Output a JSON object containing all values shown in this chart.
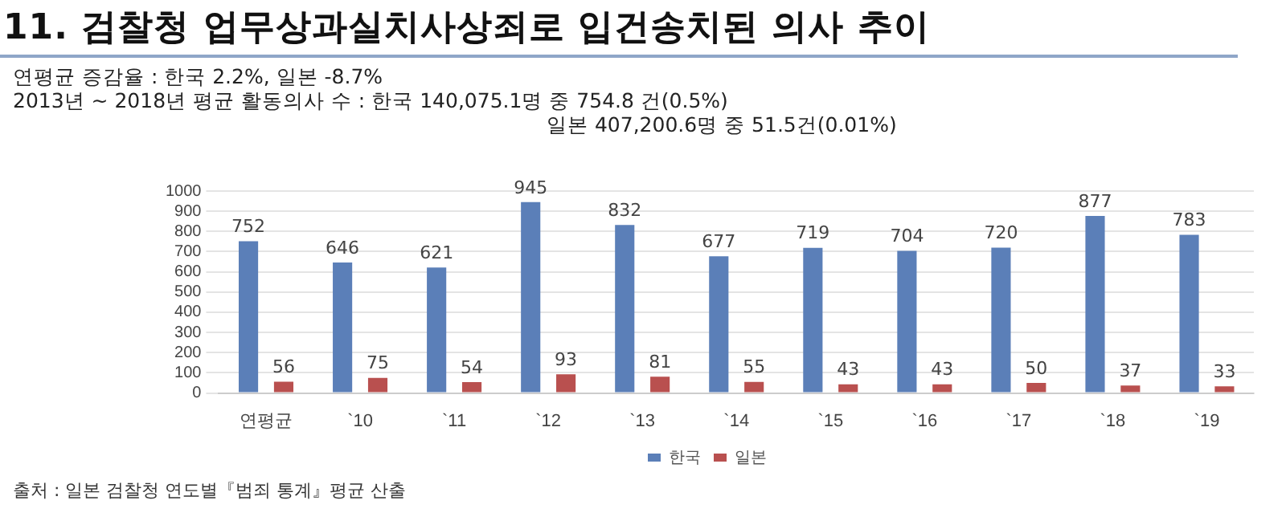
{
  "chart_data": {
    "type": "bar",
    "title": "11. 검찰청 업무상과실치사상죄로 입건송치된 의사 추이",
    "subtitle": "연평균 증감율 : 한국 2.2%, 일본 -8.7%\n2013년 ~ 2018년 평균 활동의사 수 : 한국 140,075.1명 중 754.8 건(0.5%)\n일본 407,200.6명 중 51.5건(0.01%)",
    "categories": [
      "연평균",
      "`10",
      "`11",
      "`12",
      "`13",
      "`14",
      "`15",
      "`16",
      "`17",
      "`18",
      "`19"
    ],
    "series": [
      {
        "name": "한국",
        "color": "#5b7fb8",
        "values": [
          752,
          646,
          621,
          945,
          832,
          677,
          719,
          704,
          720,
          877,
          783
        ]
      },
      {
        "name": "일본",
        "color": "#b9504f",
        "values": [
          56,
          75,
          54,
          93,
          81,
          55,
          43,
          43,
          50,
          37,
          33
        ]
      }
    ],
    "ylim": [
      0,
      1000
    ],
    "yticks": [
      0,
      100,
      200,
      300,
      400,
      500,
      600,
      700,
      800,
      900,
      1000
    ],
    "grid": "y",
    "legend": "bottom",
    "data_labels": true,
    "annotations": [
      "출처 : 일본 검찰청 연도별『범죄 통계』평균 산출"
    ]
  }
}
